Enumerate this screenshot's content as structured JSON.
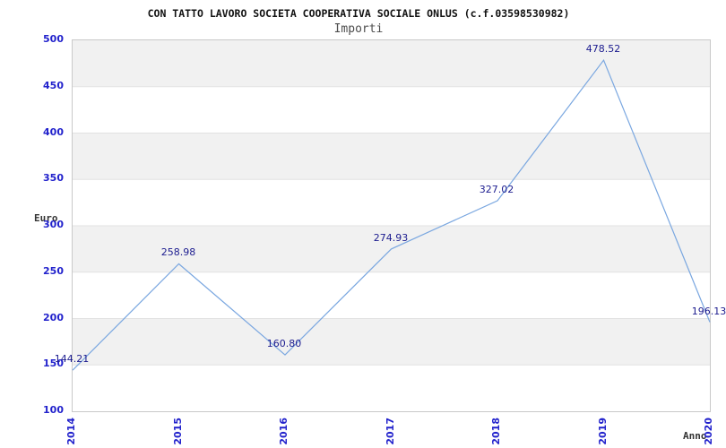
{
  "chart_data": {
    "type": "line",
    "title": "CON TATTO LAVORO SOCIETA COOPERATIVA SOCIALE ONLUS (c.f.03598530982)",
    "subtitle": "Importi",
    "xlabel": "Anno",
    "ylabel": "Euro",
    "categories": [
      "2014",
      "2015",
      "2016",
      "2017",
      "2018",
      "2019",
      "2020"
    ],
    "values": [
      144.21,
      258.98,
      160.8,
      274.93,
      327.02,
      478.52,
      196.13
    ],
    "point_labels": [
      "144.21",
      "258.98",
      "160.80",
      "274.93",
      "327.02",
      "478.52",
      "196.13"
    ],
    "yticks": [
      100,
      150,
      200,
      250,
      300,
      350,
      400,
      450,
      500
    ],
    "ylim": [
      100,
      500
    ],
    "ytick_step": 50,
    "grid": "horizontal-bands",
    "legend": "none",
    "colors": {
      "line": "#7aa7e0",
      "tick_label": "#2222cc",
      "point_label": "#1c1c8f",
      "band": "#f1f1f1",
      "band_alt": "#ffffff",
      "gridline": "#e2e2e2",
      "plot_border": "#c9c9c9",
      "title": "#111111",
      "subtitle": "#4d4d4d",
      "axis_label": "#333333"
    }
  }
}
